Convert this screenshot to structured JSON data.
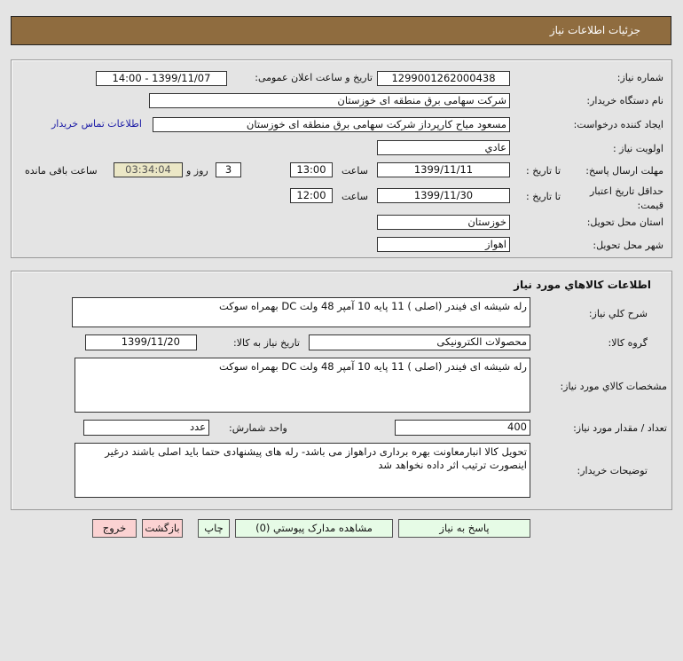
{
  "header": {
    "title": "جزئیات اطلاعات نیاز"
  },
  "info": {
    "need_number_label": "شماره نیاز:",
    "need_number": "1299001262000438",
    "announce_label": "تاریخ و ساعت اعلان عمومی:",
    "announce_value": "1399/11/07 - 14:00",
    "buyer_label": "نام دستگاه خریدار:",
    "buyer": "شرکت سهامی برق منطقه ای خوزستان",
    "creator_label": "ایجاد کننده درخواست:",
    "creator": "مسعود میاح کارپرداز شرکت سهامی برق منطقه ای خوزستان",
    "contact_link": "اطلاعات تماس خریدار",
    "priority_label": "اولویت نیاز :",
    "priority": "عادي",
    "deadline_label": "مهلت ارسال پاسخ:",
    "to_date_label": "تا تاریخ :",
    "deadline_date": "1399/11/11",
    "time_label": "ساعت",
    "deadline_time": "13:00",
    "days": "3",
    "days_label": "روز و",
    "remaining": "03:34:04",
    "remaining_label": "ساعت باقی مانده",
    "validity_label": "حداقل تاریخ اعتبار قیمت:",
    "validity_date": "1399/11/30",
    "validity_time": "12:00",
    "province_label": "استان محل تحویل:",
    "province": "خوزستان",
    "city_label": "شهر محل تحویل:",
    "city": "اهواز"
  },
  "goods": {
    "title": "اطلاعات کالاهاي مورد نیاز",
    "desc_label": "شرح کلي نیاز:",
    "desc": "رله شیشه ای فیندر (اصلی ) 11 پایه 10 آمپر 48 ولت DC   بهمراه سوکت",
    "group_label": "گروه کالا:",
    "group": "محصولات الکترونیکی",
    "need_date_label": "تاریخ نیاز به کالا:",
    "need_date": "1399/11/20",
    "spec_label": "مشخصات کالاي مورد نیاز:",
    "spec": "رله شیشه ای فیندر (اصلی ) 11 پایه 10 آمپر 48 ولت DC   بهمراه سوکت",
    "qty_label": "تعداد / مقدار مورد نیاز:",
    "qty": "400",
    "unit_label": "واحد شمارش:",
    "unit": "عدد",
    "notes_label": "توضیحات خریدار:",
    "notes": "تحویل کالا انبارمعاونت بهره برداری دراهواز می باشد- رله های پیشنهادی حتما باید اصلی باشند درغیر اینصورت ترتیب اثر داده نخواهد شد"
  },
  "buttons": {
    "reply": "پاسخ به نیاز",
    "attachments": "مشاهده مدارک پیوستي (0)",
    "print": "چاپ",
    "back": "بازگشت",
    "exit": "خروج"
  }
}
